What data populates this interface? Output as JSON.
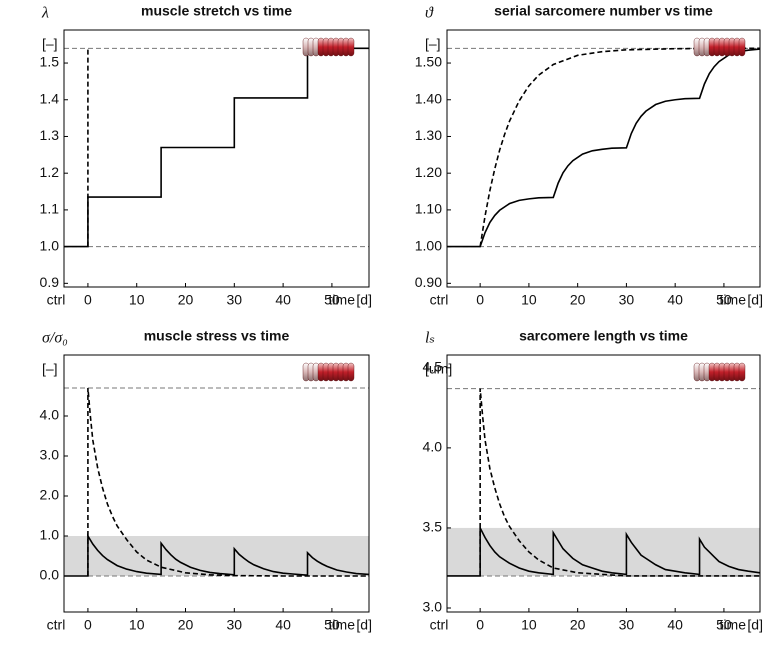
{
  "chart_data": [
    {
      "type": "line",
      "title": "muscle stretch vs time",
      "y_label": "λ",
      "y_unit": "[–]",
      "x_label": "time",
      "x_unit": "[d]",
      "xlim": [
        -4.9,
        57.6
      ],
      "xticks": [
        {
          "value": -4.9,
          "label": "ctrl"
        },
        0,
        10,
        20,
        30,
        40,
        50
      ],
      "ylim": [
        0.89,
        1.59
      ],
      "yticks": [
        0.9,
        {
          "value": 1.0,
          "label": "1.0"
        },
        1.1,
        1.2,
        1.3,
        1.4,
        1.5
      ],
      "reference_lines": [
        1.0,
        1.54
      ],
      "reference_color": "#777777",
      "series": [
        {
          "style": "solid",
          "color": "#000000",
          "x": [
            -4.9,
            0,
            0,
            15,
            15,
            30,
            30,
            45,
            45,
            57.6
          ],
          "values": [
            1.0,
            1.0,
            1.135,
            1.135,
            1.27,
            1.27,
            1.405,
            1.405,
            1.54,
            1.54
          ]
        },
        {
          "style": "dashed",
          "color": "#000000",
          "x": [
            0,
            0
          ],
          "values": [
            1.0,
            1.54
          ]
        }
      ]
    },
    {
      "type": "line",
      "title": "serial sarcomere number vs time",
      "y_label": "ϑ",
      "y_unit": "[–]",
      "x_label": "time",
      "x_unit": "[d]",
      "xlim": [
        -6.8,
        57.4
      ],
      "xticks": [
        {
          "value": -6.8,
          "label": "ctrl"
        },
        0,
        10,
        20,
        30,
        40,
        50
      ],
      "ylim": [
        0.89,
        1.59
      ],
      "yticks": [
        {
          "value": 0.9,
          "label": "0.90"
        },
        {
          "value": 1.0,
          "label": "1.00"
        },
        {
          "value": 1.1,
          "label": "1.10"
        },
        {
          "value": 1.2,
          "label": "1.20"
        },
        {
          "value": 1.3,
          "label": "1.30"
        },
        {
          "value": 1.4,
          "label": "1.40"
        },
        {
          "value": 1.5,
          "label": "1.50"
        }
      ],
      "reference_lines": [
        1.0,
        1.54
      ],
      "reference_color": "#777777",
      "series": [
        {
          "style": "solid",
          "color": "#000000",
          "x": [
            -6.8,
            0,
            1,
            2,
            3,
            4,
            6,
            8,
            10,
            12,
            15,
            16,
            17,
            18,
            19,
            21,
            23,
            25,
            27,
            30,
            31,
            32,
            33,
            34,
            36,
            38,
            40,
            42,
            45,
            46,
            47,
            48,
            49,
            51,
            53,
            55,
            57.4
          ],
          "values": [
            1.0,
            1.0,
            1.038,
            1.066,
            1.085,
            1.099,
            1.117,
            1.126,
            1.13,
            1.133,
            1.134,
            1.173,
            1.201,
            1.22,
            1.234,
            1.252,
            1.261,
            1.265,
            1.268,
            1.269,
            1.308,
            1.336,
            1.355,
            1.369,
            1.387,
            1.396,
            1.4,
            1.403,
            1.404,
            1.443,
            1.471,
            1.49,
            1.504,
            1.522,
            1.531,
            1.535,
            1.538
          ]
        },
        {
          "style": "dashed",
          "color": "#000000",
          "x": [
            0,
            1,
            2,
            3,
            4,
            5,
            6,
            8,
            10,
            12,
            15,
            20,
            25,
            30,
            40,
            50,
            57.4
          ],
          "values": [
            1.0,
            1.083,
            1.153,
            1.212,
            1.263,
            1.305,
            1.341,
            1.397,
            1.438,
            1.467,
            1.496,
            1.521,
            1.531,
            1.536,
            1.539,
            1.54,
            1.54
          ]
        }
      ]
    },
    {
      "type": "line",
      "title": "muscle stress vs time",
      "y_label": "σ/σ₀",
      "y_unit": "[–]",
      "x_label": "time",
      "x_unit": "[d]",
      "xlim": [
        -4.9,
        57.6
      ],
      "xticks": [
        {
          "value": -4.9,
          "label": "ctrl"
        },
        0,
        10,
        20,
        30,
        40,
        50
      ],
      "ylim": [
        -0.9,
        5.525
      ],
      "yticks": [
        {
          "value": 0,
          "label": "0.0"
        },
        {
          "value": 1,
          "label": "1.0"
        },
        {
          "value": 2,
          "label": "2.0"
        },
        {
          "value": 3,
          "label": "3.0"
        },
        {
          "value": 4,
          "label": "4.0"
        }
      ],
      "reference_lines": [
        0,
        4.7
      ],
      "reference_color": "#777777",
      "band": [
        0,
        1
      ],
      "band_color": "#d9d9d9",
      "series": [
        {
          "style": "solid",
          "color": "#000000",
          "x": [
            -4.9,
            0,
            0,
            1,
            2,
            3,
            4,
            6,
            8,
            10,
            12,
            15,
            15,
            16,
            17,
            18,
            19,
            21,
            23,
            25,
            27,
            30,
            30,
            31,
            32,
            33,
            34,
            36,
            38,
            40,
            42,
            45,
            45,
            46,
            47,
            48,
            49,
            51,
            53,
            55,
            57.6
          ],
          "values": [
            0,
            0,
            1.0,
            0.8,
            0.64,
            0.51,
            0.41,
            0.26,
            0.17,
            0.11,
            0.07,
            0.04,
            0.82,
            0.66,
            0.53,
            0.42,
            0.34,
            0.22,
            0.14,
            0.09,
            0.06,
            0.03,
            0.68,
            0.54,
            0.44,
            0.35,
            0.28,
            0.18,
            0.11,
            0.07,
            0.05,
            0.02,
            0.58,
            0.46,
            0.37,
            0.3,
            0.24,
            0.15,
            0.1,
            0.06,
            0.04
          ]
        },
        {
          "style": "dashed",
          "color": "#000000",
          "x": [
            0,
            0,
            0.5,
            1,
            2,
            3,
            4,
            5,
            6,
            8,
            10,
            12,
            15,
            20,
            25,
            30,
            40,
            57.6
          ],
          "values": [
            0,
            4.7,
            4.0,
            3.4,
            2.7,
            2.2,
            1.8,
            1.5,
            1.25,
            0.9,
            0.6,
            0.4,
            0.22,
            0.08,
            0.03,
            0.01,
            0,
            0
          ]
        }
      ]
    },
    {
      "type": "line",
      "title": "sarcomere length vs time",
      "y_label": "lₛ",
      "y_unit": "[um]",
      "x_label": "time",
      "x_unit": "[d]",
      "xlim": [
        -6.8,
        57.4
      ],
      "xticks": [
        {
          "value": -6.8,
          "label": "ctrl"
        },
        0,
        10,
        20,
        30,
        40,
        50
      ],
      "ylim": [
        2.975,
        4.58
      ],
      "yticks": [
        {
          "value": 3,
          "label": "3.0"
        },
        3.5,
        {
          "value": 4,
          "label": "4.0"
        },
        4.5
      ],
      "reference_lines": [
        3.2,
        4.37
      ],
      "reference_color": "#777777",
      "band": [
        3.2,
        3.5
      ],
      "band_color": "#d9d9d9",
      "series": [
        {
          "style": "solid",
          "color": "#000000",
          "x": [
            -6.8,
            0,
            0,
            1,
            2,
            3,
            4,
            6,
            8,
            10,
            12,
            15,
            15,
            16,
            17,
            18,
            19,
            21,
            23,
            25,
            27,
            30,
            30,
            31,
            32,
            33,
            34,
            36,
            38,
            40,
            42,
            45,
            45,
            46,
            47,
            48,
            49,
            51,
            53,
            55,
            57.4
          ],
          "values": [
            3.2,
            3.2,
            3.5,
            3.44,
            3.39,
            3.35,
            3.32,
            3.28,
            3.25,
            3.23,
            3.22,
            3.21,
            3.47,
            3.42,
            3.37,
            3.34,
            3.31,
            3.27,
            3.25,
            3.23,
            3.22,
            3.21,
            3.46,
            3.41,
            3.37,
            3.33,
            3.31,
            3.27,
            3.24,
            3.23,
            3.22,
            3.21,
            3.43,
            3.38,
            3.35,
            3.32,
            3.29,
            3.26,
            3.24,
            3.23,
            3.22
          ]
        },
        {
          "style": "dashed",
          "color": "#000000",
          "x": [
            0,
            0,
            0.5,
            1,
            2,
            3,
            4,
            5,
            6,
            8,
            10,
            12,
            15,
            20,
            25,
            30,
            40,
            57.4
          ],
          "values": [
            3.2,
            4.37,
            4.2,
            4.05,
            3.87,
            3.75,
            3.65,
            3.57,
            3.51,
            3.42,
            3.35,
            3.3,
            3.25,
            3.22,
            3.21,
            3.2,
            3.2,
            3.2
          ]
        }
      ]
    }
  ]
}
